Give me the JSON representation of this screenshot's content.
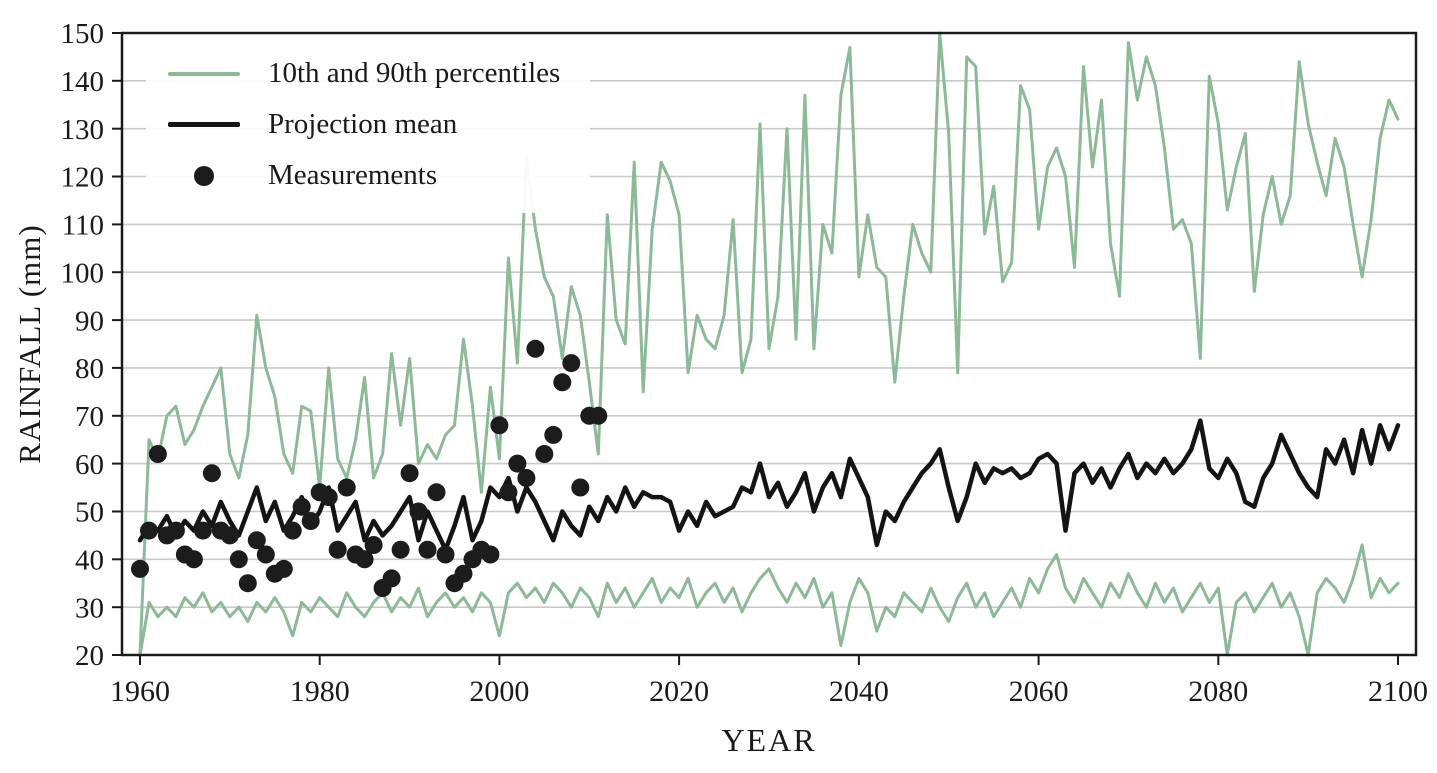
{
  "figure": {
    "xlabel": "YEAR",
    "ylabel": "RAINFALL (mm)"
  },
  "colors": {
    "grid": "#c9c9c9",
    "axis": "#1a1a1a",
    "background": "#ffffff",
    "percentile_green": "#8cba96",
    "mean_black": "#141414",
    "dot_black": "#1c1c1c"
  },
  "legend": {
    "items": [
      {
        "label": "10th and 90th percentiles",
        "swatch": "line",
        "color": "#8cba96"
      },
      {
        "label": "Projection mean",
        "swatch": "line",
        "color": "#141414"
      },
      {
        "label": "Measurements",
        "swatch": "dot",
        "color": "#1c1c1c"
      }
    ]
  },
  "chart_data": {
    "type": "line",
    "title": "",
    "xlabel": "YEAR",
    "ylabel": "RAINFALL (mm)",
    "xlim": [
      1958,
      2102
    ],
    "ylim": [
      20,
      150
    ],
    "xticks": [
      1960,
      1980,
      2000,
      2020,
      2040,
      2060,
      2080,
      2100
    ],
    "yticks": [
      20,
      30,
      40,
      50,
      60,
      70,
      80,
      90,
      100,
      110,
      120,
      130,
      140,
      150
    ],
    "grid": "horizontal",
    "legend_position": "upper-left",
    "x": [
      1960,
      1961,
      1962,
      1963,
      1964,
      1965,
      1966,
      1967,
      1968,
      1969,
      1970,
      1971,
      1972,
      1973,
      1974,
      1975,
      1976,
      1977,
      1978,
      1979,
      1980,
      1981,
      1982,
      1983,
      1984,
      1985,
      1986,
      1987,
      1988,
      1989,
      1990,
      1991,
      1992,
      1993,
      1994,
      1995,
      1996,
      1997,
      1998,
      1999,
      2000,
      2001,
      2002,
      2003,
      2004,
      2005,
      2006,
      2007,
      2008,
      2009,
      2010,
      2011,
      2012,
      2013,
      2014,
      2015,
      2016,
      2017,
      2018,
      2019,
      2020,
      2021,
      2022,
      2023,
      2024,
      2025,
      2026,
      2027,
      2028,
      2029,
      2030,
      2031,
      2032,
      2033,
      2034,
      2035,
      2036,
      2037,
      2038,
      2039,
      2040,
      2041,
      2042,
      2043,
      2044,
      2045,
      2046,
      2047,
      2048,
      2049,
      2050,
      2051,
      2052,
      2053,
      2054,
      2055,
      2056,
      2057,
      2058,
      2059,
      2060,
      2061,
      2062,
      2063,
      2064,
      2065,
      2066,
      2067,
      2068,
      2069,
      2070,
      2071,
      2072,
      2073,
      2074,
      2075,
      2076,
      2077,
      2078,
      2079,
      2080,
      2081,
      2082,
      2083,
      2084,
      2085,
      2086,
      2087,
      2088,
      2089,
      2090,
      2091,
      2092,
      2093,
      2094,
      2095,
      2096,
      2097,
      2098,
      2099,
      2100
    ],
    "series": [
      {
        "name": "90th percentile",
        "color": "#8cba96",
        "width": 3,
        "values": [
          20,
          65,
          61,
          70,
          72,
          64,
          67,
          72,
          76,
          80,
          62,
          57,
          66,
          91,
          80,
          74,
          62,
          58,
          72,
          71,
          55,
          80,
          61,
          57,
          65,
          78,
          57,
          62,
          83,
          68,
          82,
          60,
          64,
          61,
          66,
          68,
          86,
          72,
          54,
          76,
          61,
          103,
          81,
          124,
          109,
          99,
          95,
          82,
          97,
          91,
          77,
          62,
          112,
          90,
          85,
          123,
          75,
          109,
          123,
          119,
          112,
          79,
          91,
          86,
          84,
          91,
          111,
          79,
          86,
          131,
          84,
          95,
          130,
          86,
          137,
          84,
          110,
          104,
          137,
          147,
          99,
          112,
          101,
          99,
          77,
          95,
          110,
          104,
          100,
          150,
          129,
          79,
          145,
          143,
          108,
          118,
          98,
          102,
          139,
          134,
          109,
          122,
          126,
          120,
          101,
          143,
          122,
          136,
          106,
          95,
          148,
          136,
          145,
          139,
          126,
          109,
          111,
          106,
          82,
          141,
          131,
          113,
          122,
          129,
          96,
          112,
          120,
          110,
          116,
          144,
          131,
          123,
          116,
          128,
          122,
          110,
          99,
          111,
          128,
          136,
          132
        ]
      },
      {
        "name": "10th percentile",
        "color": "#8cba96",
        "width": 3,
        "values": [
          20,
          31,
          28,
          30,
          28,
          32,
          30,
          33,
          29,
          31,
          28,
          30,
          27,
          31,
          29,
          32,
          29,
          24,
          31,
          29,
          32,
          30,
          28,
          33,
          30,
          28,
          31,
          33,
          29,
          32,
          30,
          34,
          28,
          31,
          33,
          30,
          32,
          29,
          33,
          31,
          24,
          33,
          35,
          32,
          34,
          31,
          35,
          33,
          30,
          34,
          32,
          28,
          35,
          31,
          34,
          30,
          33,
          36,
          31,
          34,
          32,
          36,
          30,
          33,
          35,
          31,
          34,
          29,
          33,
          36,
          38,
          34,
          31,
          35,
          32,
          36,
          30,
          33,
          22,
          31,
          36,
          33,
          25,
          30,
          28,
          33,
          31,
          29,
          34,
          30,
          27,
          32,
          35,
          30,
          33,
          28,
          31,
          34,
          30,
          36,
          33,
          38,
          41,
          34,
          31,
          36,
          33,
          30,
          35,
          32,
          37,
          33,
          30,
          35,
          31,
          34,
          29,
          32,
          35,
          31,
          34,
          20,
          31,
          33,
          29,
          32,
          35,
          30,
          33,
          28,
          20,
          33,
          36,
          34,
          31,
          36,
          43,
          32,
          36,
          33,
          35
        ]
      },
      {
        "name": "Projection mean",
        "color": "#141414",
        "width": 4.5,
        "values": [
          44,
          47,
          46,
          49,
          45,
          48,
          46,
          50,
          47,
          52,
          48,
          45,
          50,
          55,
          48,
          52,
          46,
          49,
          53,
          47,
          50,
          55,
          46,
          49,
          52,
          44,
          48,
          45,
          47,
          50,
          53,
          44,
          50,
          46,
          42,
          47,
          53,
          44,
          48,
          55,
          53,
          57,
          50,
          55,
          52,
          48,
          44,
          50,
          47,
          45,
          51,
          48,
          53,
          50,
          55,
          51,
          54,
          53,
          53,
          52,
          46,
          50,
          47,
          52,
          49,
          50,
          51,
          55,
          54,
          60,
          53,
          56,
          51,
          54,
          58,
          50,
          55,
          58,
          53,
          61,
          57,
          53,
          43,
          50,
          48,
          52,
          55,
          58,
          60,
          63,
          55,
          48,
          53,
          60,
          56,
          59,
          58,
          59,
          57,
          58,
          61,
          62,
          60,
          46,
          58,
          60,
          56,
          59,
          55,
          59,
          62,
          57,
          60,
          58,
          61,
          58,
          60,
          63,
          69,
          59,
          57,
          61,
          58,
          52,
          51,
          57,
          60,
          66,
          62,
          58,
          55,
          53,
          63,
          60,
          65,
          58,
          67,
          60,
          68,
          63,
          68
        ]
      }
    ],
    "measurements": {
      "name": "Measurements",
      "type": "scatter",
      "color": "#1c1c1c",
      "radius": 9,
      "x": [
        1960,
        1961,
        1962,
        1963,
        1964,
        1965,
        1966,
        1967,
        1968,
        1969,
        1970,
        1971,
        1972,
        1973,
        1974,
        1975,
        1976,
        1977,
        1978,
        1979,
        1980,
        1981,
        1982,
        1983,
        1984,
        1985,
        1986,
        1987,
        1988,
        1989,
        1990,
        1991,
        1992,
        1993,
        1994,
        1995,
        1996,
        1997,
        1998,
        1999,
        2000,
        2001,
        2002,
        2003,
        2004,
        2005,
        2006,
        2007,
        2008,
        2009,
        2010,
        2011
      ],
      "y": [
        38,
        46,
        62,
        45,
        46,
        41,
        40,
        46,
        58,
        46,
        45,
        40,
        35,
        44,
        41,
        37,
        38,
        46,
        51,
        48,
        54,
        53,
        42,
        55,
        41,
        40,
        43,
        34,
        36,
        42,
        58,
        50,
        42,
        54,
        41,
        35,
        37,
        40,
        42,
        41,
        68,
        54,
        60,
        57,
        84,
        62,
        66,
        77,
        81,
        55,
        70,
        70
      ]
    }
  }
}
